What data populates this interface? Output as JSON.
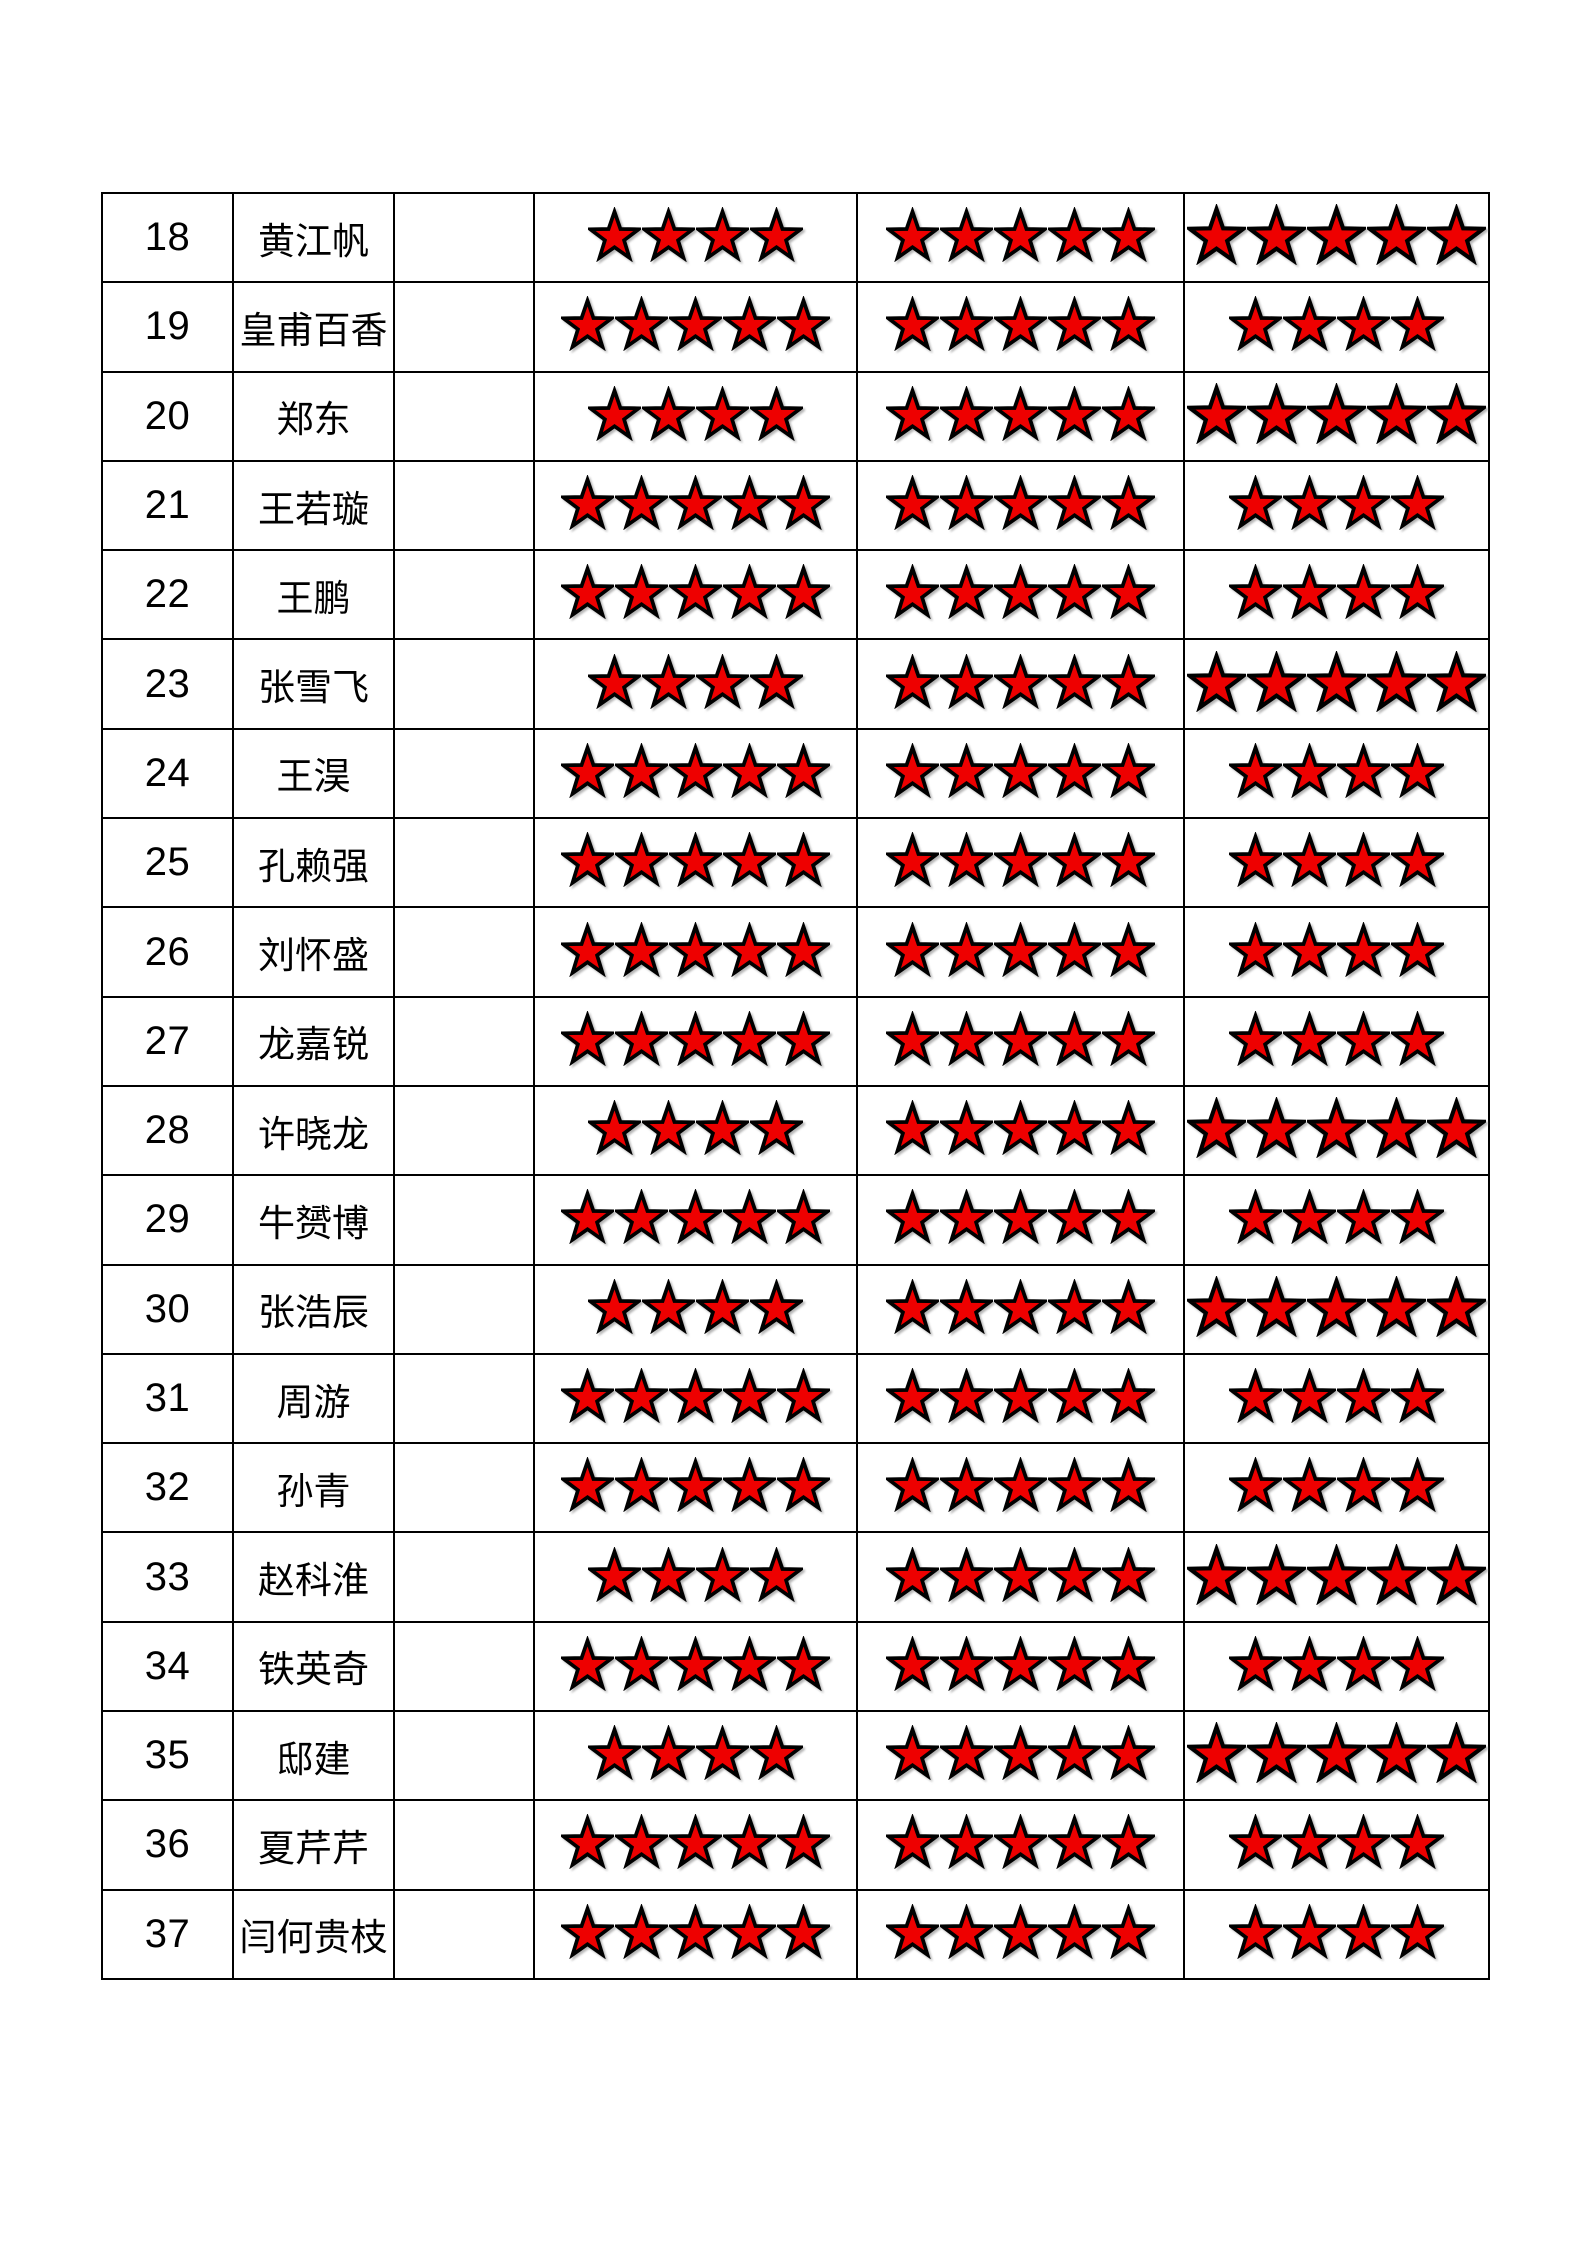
{
  "page": {
    "background": "#ffffff"
  },
  "table": {
    "border_color": "#000000",
    "star_icon": {
      "name": "star-icon",
      "fill": "#ee0000",
      "outline": "#000000"
    },
    "rows": [
      {
        "index": "18",
        "name": "黄江帆",
        "stars": [
          4,
          5,
          5
        ]
      },
      {
        "index": "19",
        "name": "皇甫百香",
        "stars": [
          5,
          5,
          4
        ]
      },
      {
        "index": "20",
        "name": "郑东",
        "stars": [
          4,
          5,
          5
        ]
      },
      {
        "index": "21",
        "name": "王若璇",
        "stars": [
          5,
          5,
          4
        ]
      },
      {
        "index": "22",
        "name": "王鹏",
        "stars": [
          5,
          5,
          4
        ]
      },
      {
        "index": "23",
        "name": "张雪飞",
        "stars": [
          4,
          5,
          5
        ]
      },
      {
        "index": "24",
        "name": "王淏",
        "stars": [
          5,
          5,
          4
        ]
      },
      {
        "index": "25",
        "name": "孔赖强",
        "stars": [
          5,
          5,
          4
        ]
      },
      {
        "index": "26",
        "name": "刘怀盛",
        "stars": [
          5,
          5,
          4
        ]
      },
      {
        "index": "27",
        "name": "龙嘉锐",
        "stars": [
          5,
          5,
          4
        ]
      },
      {
        "index": "28",
        "name": "许晓龙",
        "stars": [
          4,
          5,
          5
        ]
      },
      {
        "index": "29",
        "name": "牛赟博",
        "stars": [
          5,
          5,
          4
        ]
      },
      {
        "index": "30",
        "name": "张浩辰",
        "stars": [
          4,
          5,
          5
        ]
      },
      {
        "index": "31",
        "name": "周游",
        "stars": [
          5,
          5,
          4
        ]
      },
      {
        "index": "32",
        "name": "孙青",
        "stars": [
          5,
          5,
          4
        ]
      },
      {
        "index": "33",
        "name": "赵科淮",
        "stars": [
          4,
          5,
          5
        ]
      },
      {
        "index": "34",
        "name": "铁英奇",
        "stars": [
          5,
          5,
          4
        ]
      },
      {
        "index": "35",
        "name": "邸建",
        "stars": [
          4,
          5,
          5
        ]
      },
      {
        "index": "36",
        "name": "夏芹芹",
        "stars": [
          5,
          5,
          4
        ]
      },
      {
        "index": "37",
        "name": "闫何贵枝",
        "stars": [
          5,
          5,
          4
        ]
      }
    ]
  }
}
